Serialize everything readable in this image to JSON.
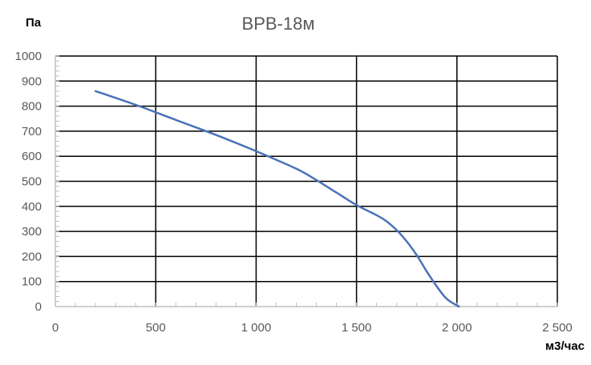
{
  "chart_data": {
    "type": "line",
    "title": "ВРВ-18м",
    "ylabel": "Па",
    "xlabel": "м3/час",
    "xlim": [
      0,
      2500
    ],
    "ylim": [
      0,
      1000
    ],
    "x_ticks": [
      0,
      500,
      1000,
      1500,
      2000,
      2500
    ],
    "x_tick_labels": [
      "0",
      "500",
      "1 000",
      "1 500",
      "2 000",
      "2 500"
    ],
    "y_ticks": [
      0,
      100,
      200,
      300,
      400,
      500,
      600,
      700,
      800,
      900,
      1000
    ],
    "y_tick_labels": [
      "0",
      "100",
      "200",
      "300",
      "400",
      "500",
      "600",
      "700",
      "800",
      "900",
      "1000"
    ],
    "grid": true,
    "series": [
      {
        "color": "#4a72b8",
        "points": [
          [
            200,
            860
          ],
          [
            400,
            805
          ],
          [
            600,
            745
          ],
          [
            800,
            685
          ],
          [
            1000,
            620
          ],
          [
            1200,
            550
          ],
          [
            1300,
            505
          ],
          [
            1400,
            455
          ],
          [
            1500,
            405
          ],
          [
            1600,
            365
          ],
          [
            1650,
            340
          ],
          [
            1700,
            305
          ],
          [
            1750,
            260
          ],
          [
            1800,
            205
          ],
          [
            1850,
            140
          ],
          [
            1900,
            80
          ],
          [
            1950,
            30
          ],
          [
            2010,
            0
          ]
        ]
      }
    ]
  }
}
